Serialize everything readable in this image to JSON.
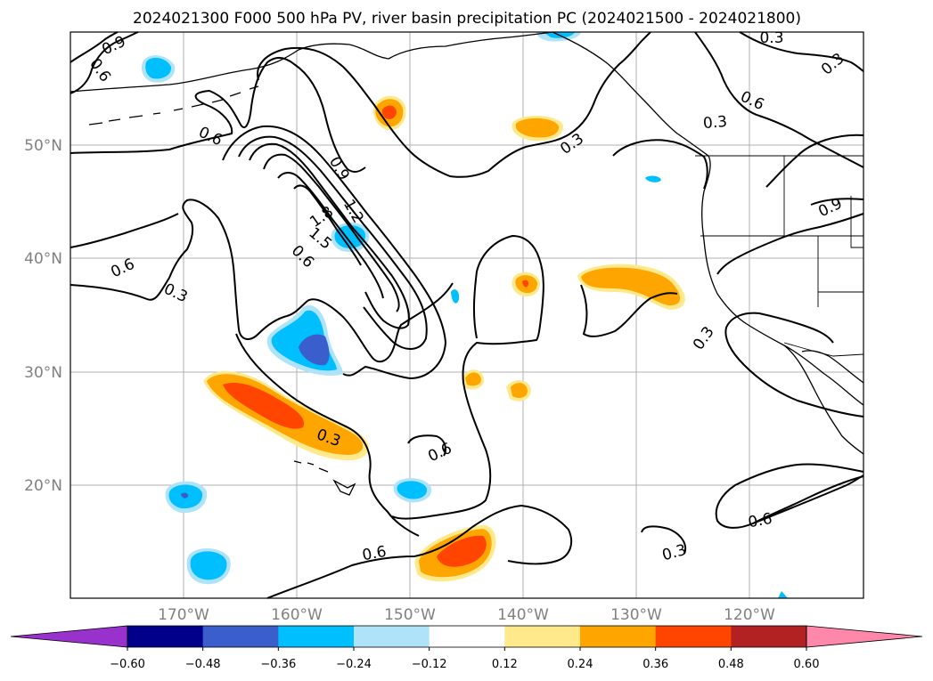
{
  "title": "2024021300 F000 500 hPa PV, river basin precipitation PC (2024021500 - 2024021800)",
  "lat_labels": [
    "50°N",
    "40°N",
    "30°N",
    "20°N"
  ],
  "lon_labels": [
    "170°W",
    "160°W",
    "150°W",
    "140°W",
    "130°W",
    "120°W"
  ],
  "colorbar": {
    "ticks": [
      "−0.60",
      "−0.48",
      "−0.36",
      "−0.24",
      "−0.12",
      "0.12",
      "0.24",
      "0.36",
      "0.48",
      "0.60"
    ],
    "colors": [
      "#9932cc",
      "#00008b",
      "#3a5fcd",
      "#00bfff",
      "#aee3fa",
      "#ffffff",
      "#ffe98a",
      "#ffa500",
      "#ff4500",
      "#b22222",
      "#ff88aa"
    ]
  },
  "contour_labels": [
    "0.9",
    "0.6",
    "0.6",
    "0.3",
    "0.3",
    "0.6",
    "1.5",
    "1.8",
    "0.9",
    "1.2",
    "0.6",
    "0.3",
    "0.3",
    "0.6",
    "0.3",
    "0.3",
    "0.9",
    "0.6",
    "0.6",
    "0.3",
    "0.6",
    "0.3",
    "0.3"
  ],
  "chart_data": {
    "type": "map",
    "projection": "equirectangular",
    "extent": {
      "lon": [
        -180,
        -110
      ],
      "lat": [
        10,
        60
      ]
    },
    "grid": true,
    "colorbar_levels": [
      -0.6,
      -0.48,
      -0.36,
      -0.24,
      -0.12,
      0.12,
      0.24,
      0.36,
      0.48,
      0.6
    ],
    "contour_values": [
      0.3,
      0.6,
      0.9,
      1.2,
      1.5,
      1.8
    ]
  }
}
